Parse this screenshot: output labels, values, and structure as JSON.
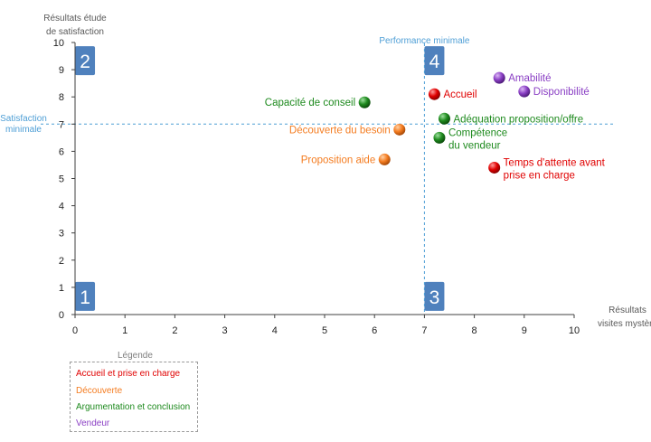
{
  "colors": {
    "accueil": "#e00000",
    "decouverte": "#f47c20",
    "argumentation": "#1e8a1e",
    "vendeur": "#8a3fc4",
    "quadrant_box": "#4f81bd",
    "threshold": "#4f9fd6",
    "axis": "#404040",
    "axis_title": "#595959"
  },
  "chart_data": {
    "type": "scatter",
    "xlabel": "Résultats\nvisites mystère",
    "ylabel": "Résultats étude\nde satisfaction",
    "xlim": [
      0,
      10
    ],
    "ylim": [
      0,
      10
    ],
    "x_ticks": [
      "0",
      "1",
      "2",
      "3",
      "4",
      "5",
      "6",
      "7",
      "8",
      "9",
      "10"
    ],
    "y_ticks": [
      "0",
      "1",
      "2",
      "3",
      "4",
      "5",
      "6",
      "7",
      "8",
      "9",
      "10"
    ],
    "grid": false,
    "thresholds": {
      "x": 7,
      "x_label": "Performance minimale",
      "y": 7,
      "y_label": "Satisfaction\nminimale"
    },
    "quadrants": [
      {
        "label": "2",
        "x": 0.2,
        "y": 9.33
      },
      {
        "label": "4",
        "x": 7.2,
        "y": 9.33
      },
      {
        "label": "1",
        "x": 0.2,
        "y": 0.67
      },
      {
        "label": "3",
        "x": 7.2,
        "y": 0.67
      }
    ],
    "series": [
      {
        "name": "Accueil et prise en charge",
        "color_key": "accueil",
        "points": [
          {
            "label": "Accueil",
            "x": 7.2,
            "y": 8.1,
            "pos": "right"
          },
          {
            "label": "Temps d'attente avant\nprise en charge",
            "x": 8.4,
            "y": 5.4,
            "pos": "right"
          }
        ]
      },
      {
        "name": "Découverte",
        "color_key": "decouverte",
        "points": [
          {
            "label": "Découverte du besoin",
            "x": 6.5,
            "y": 6.8,
            "pos": "left"
          },
          {
            "label": "Proposition aide",
            "x": 6.2,
            "y": 5.7,
            "pos": "left"
          }
        ]
      },
      {
        "name": "Argumentation et conclusion",
        "color_key": "argumentation",
        "points": [
          {
            "label": "Capacité de conseil",
            "x": 5.8,
            "y": 7.8,
            "pos": "left"
          },
          {
            "label": "Adéquation proposition/offre",
            "x": 7.4,
            "y": 7.2,
            "pos": "right"
          },
          {
            "label": "Compétence\ndu vendeur",
            "x": 7.3,
            "y": 6.5,
            "pos": "right"
          }
        ]
      },
      {
        "name": "Vendeur",
        "color_key": "vendeur",
        "points": [
          {
            "label": "Amabilité",
            "x": 8.5,
            "y": 8.7,
            "pos": "right"
          },
          {
            "label": "Disponibilité",
            "x": 9.0,
            "y": 8.2,
            "pos": "right"
          }
        ]
      }
    ]
  },
  "legend": {
    "title": "Légende",
    "items": [
      {
        "label": "Accueil et prise en charge",
        "color_key": "accueil"
      },
      {
        "label": "Découverte",
        "color_key": "decouverte"
      },
      {
        "label": "Argumentation et conclusion",
        "color_key": "argumentation"
      },
      {
        "label": "Vendeur",
        "color_key": "vendeur"
      }
    ]
  }
}
